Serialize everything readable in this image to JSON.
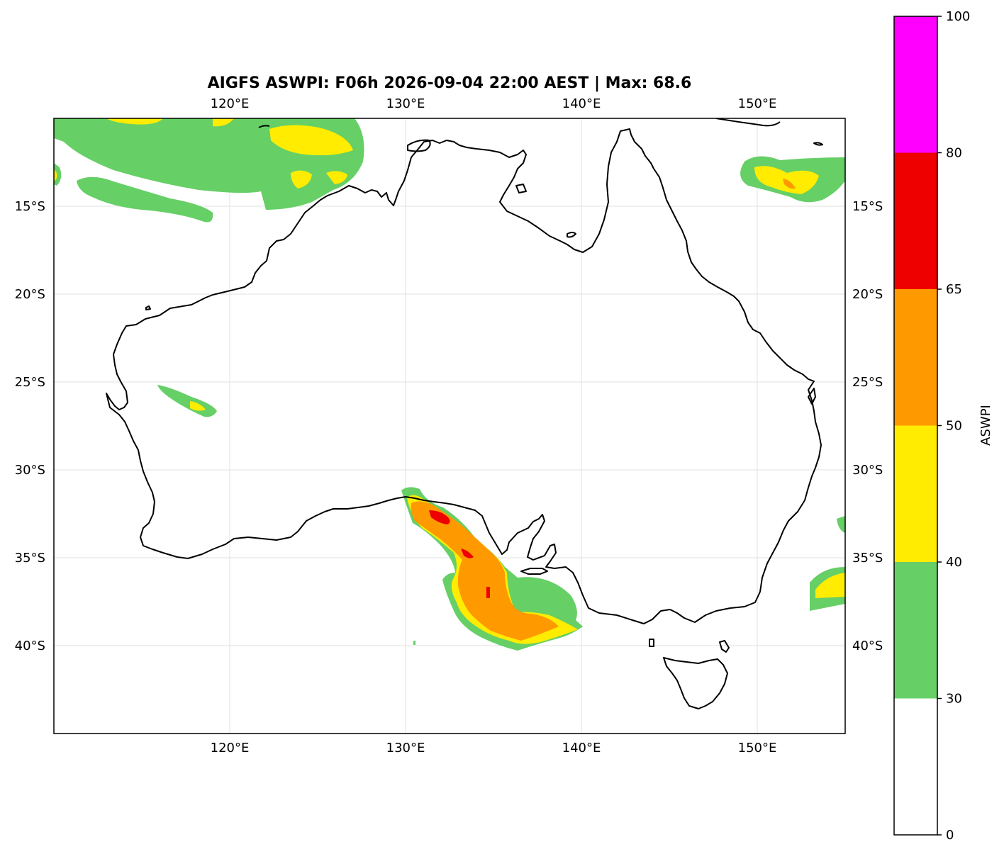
{
  "map": {
    "title": "AIGFS ASWPI: F06h 2026-09-04 22:00 AEST | Max: 68.6",
    "extent": {
      "lon_min": 110,
      "lon_max": 155,
      "lat_min": -45,
      "lat_max": -10
    },
    "lon_ticks": [
      {
        "value": 120,
        "label": "120°E"
      },
      {
        "value": 130,
        "label": "130°E"
      },
      {
        "value": 140,
        "label": "140°E"
      },
      {
        "value": 150,
        "label": "150°E"
      }
    ],
    "lat_ticks": [
      {
        "value": -15,
        "label": "15°S"
      },
      {
        "value": -20,
        "label": "20°S"
      },
      {
        "value": -25,
        "label": "25°S"
      },
      {
        "value": -30,
        "label": "30°S"
      },
      {
        "value": -35,
        "label": "35°S"
      },
      {
        "value": -40,
        "label": "40°S"
      }
    ],
    "grid": true,
    "gridline_color": "#e6e6e6"
  },
  "colorbar": {
    "label": "ASWPI",
    "orientation": "vertical",
    "placement": "right",
    "bins": [
      {
        "from": 0,
        "to": 30,
        "color": "#ffffff"
      },
      {
        "from": 30,
        "to": 40,
        "color": "#66cf66"
      },
      {
        "from": 40,
        "to": 50,
        "color": "#ffec00"
      },
      {
        "from": 50,
        "to": 65,
        "color": "#ff9900"
      },
      {
        "from": 65,
        "to": 80,
        "color": "#ee0000"
      },
      {
        "from": 80,
        "to": 100,
        "color": "#ff00ff"
      }
    ],
    "ticks": [
      {
        "value": 0,
        "label": "0"
      },
      {
        "value": 30,
        "label": "30"
      },
      {
        "value": 40,
        "label": "40"
      },
      {
        "value": 50,
        "label": "50"
      },
      {
        "value": 65,
        "label": "65"
      },
      {
        "value": 80,
        "label": "80"
      },
      {
        "value": 100,
        "label": "100"
      }
    ]
  },
  "colors": {
    "green": "#66cf66",
    "yellow": "#ffec00",
    "orange": "#ff9900",
    "red": "#ee0000",
    "magenta": "#ff00ff",
    "coastline": "#000000"
  }
}
